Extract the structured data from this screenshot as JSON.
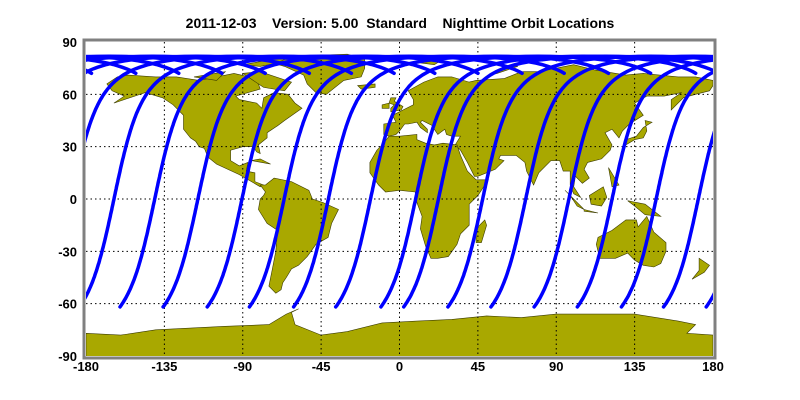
{
  "title": "2011-12-03    Version: 5.00  Standard    Nighttime Orbit Locations",
  "map": {
    "projection": "equirectangular",
    "xlim": [
      -180,
      180
    ],
    "ylim": [
      -90,
      90
    ],
    "x_ticks": [
      "-180",
      "-135",
      "-90",
      "-45",
      "0",
      "45",
      "90",
      "135",
      "180"
    ],
    "y_ticks": [
      "90",
      "60",
      "30",
      "0",
      "-30",
      "-60",
      "-90"
    ],
    "grid": "dotted",
    "colors": {
      "land": "#a9a800",
      "coast": "#3a3a00",
      "orbit": "#0000ff",
      "frame": "#808080"
    }
  },
  "orbit_tracks": {
    "southern_end_lat": -62,
    "northern_max_lat": 82,
    "southern_end_lons": [
      -160.6,
      -135.8,
      -110.5,
      -86.3,
      -60.9,
      -36.7,
      -10.8,
      2.3,
      27.7,
      52.4,
      77.2,
      102.0,
      127.3,
      151.5,
      176.0
    ]
  }
}
